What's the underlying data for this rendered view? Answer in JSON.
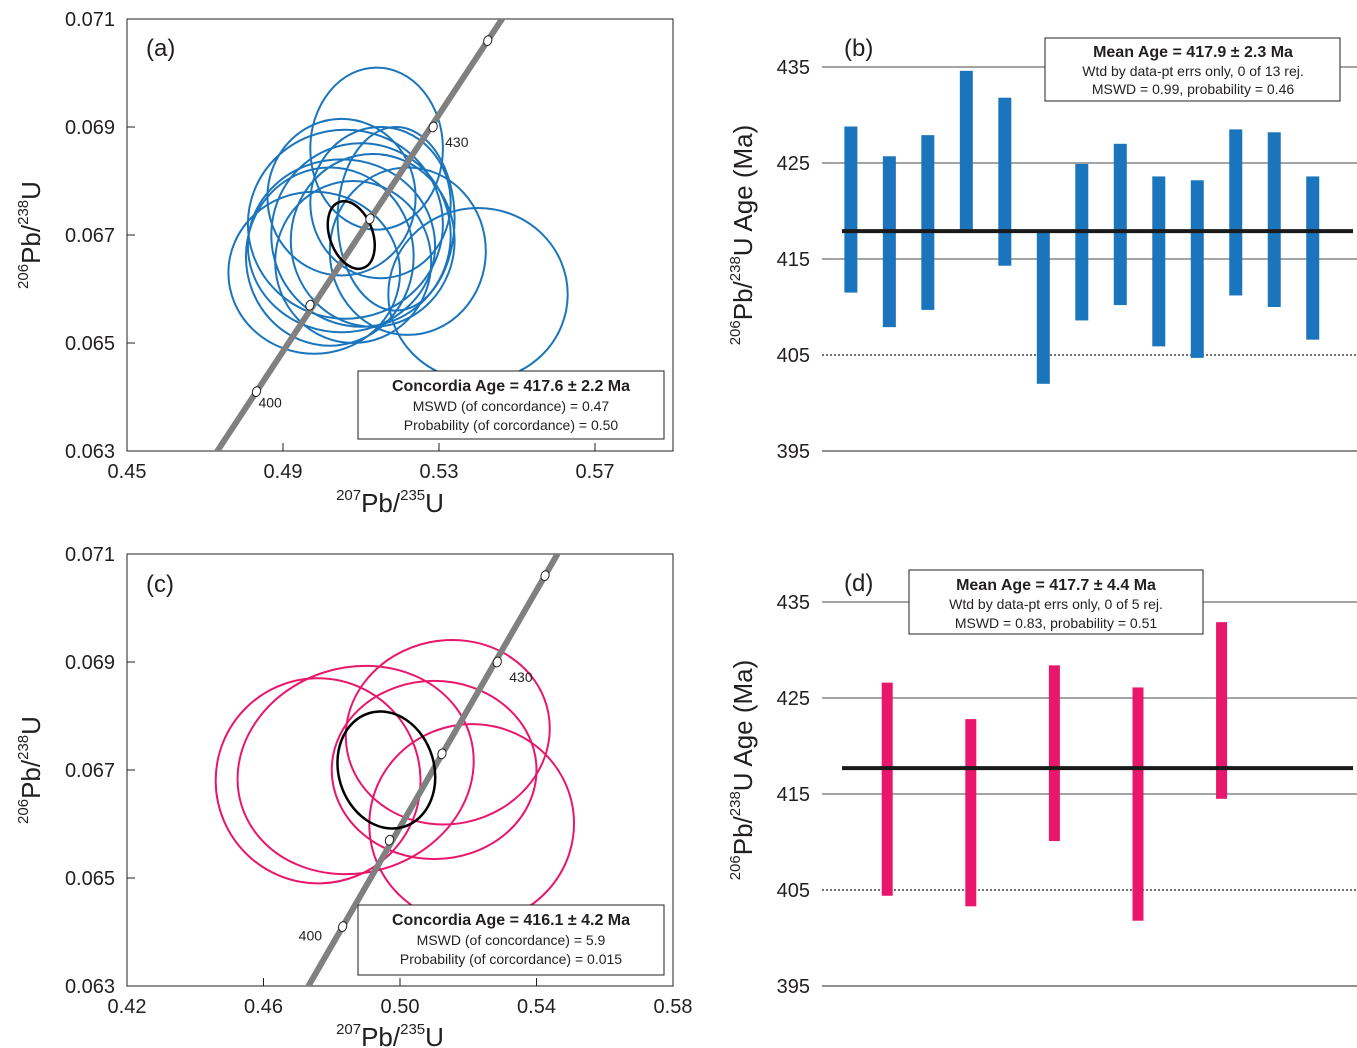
{
  "chart_data": [
    {
      "panel": "(a)",
      "type": "concordia",
      "xlabel": {
        "sup1": "207",
        "base1": "Pb/",
        "sup2": "235",
        "base2": "U"
      },
      "ylabel": {
        "sup1": "206",
        "base1": "Pb/",
        "sup2": "238",
        "base2": "U"
      },
      "xlim": [
        0.45,
        0.59
      ],
      "ylim": [
        0.063,
        0.071
      ],
      "xticks": [
        "0.45",
        "0.49",
        "0.53",
        "0.57"
      ],
      "yticks": [
        "0.063",
        "0.065",
        "0.067",
        "0.069",
        "0.071"
      ],
      "xtick_values": [
        0.45,
        0.49,
        0.53,
        0.57
      ],
      "ytick_values": [
        0.063,
        0.065,
        0.067,
        0.069,
        0.071
      ],
      "ellipse_color": "#1a75bc",
      "concordia_points": [
        {
          "x": 0.4832,
          "y": 0.0641,
          "age": "400"
        },
        {
          "x": 0.4969,
          "y": 0.0657,
          "age": ""
        },
        {
          "x": 0.5123,
          "y": 0.0673,
          "age": ""
        },
        {
          "x": 0.5285,
          "y": 0.069,
          "age": "430"
        },
        {
          "x": 0.5425,
          "y": 0.0706,
          "age": ""
        }
      ],
      "ellipses": [
        {
          "cx": 0.508,
          "cy": 0.0665,
          "rx": 0.02,
          "ry": 0.0015,
          "rot": 0
        },
        {
          "cx": 0.51,
          "cy": 0.067,
          "rx": 0.023,
          "ry": 0.0017,
          "rot": 0
        },
        {
          "cx": 0.505,
          "cy": 0.0668,
          "rx": 0.024,
          "ry": 0.0016,
          "rot": 0
        },
        {
          "cx": 0.498,
          "cy": 0.0663,
          "rx": 0.022,
          "ry": 0.0015,
          "rot": 0
        },
        {
          "cx": 0.506,
          "cy": 0.0672,
          "rx": 0.025,
          "ry": 0.00175,
          "rot": 0
        },
        {
          "cx": 0.502,
          "cy": 0.0666,
          "rx": 0.0215,
          "ry": 0.00165,
          "rot": 0
        },
        {
          "cx": 0.513,
          "cy": 0.0669,
          "rx": 0.021,
          "ry": 0.0016,
          "rot": 0
        },
        {
          "cx": 0.515,
          "cy": 0.0676,
          "rx": 0.018,
          "ry": 0.0014,
          "rot": 0
        },
        {
          "cx": 0.514,
          "cy": 0.0686,
          "rx": 0.017,
          "ry": 0.0015,
          "rot": 0
        },
        {
          "cx": 0.519,
          "cy": 0.0673,
          "rx": 0.015,
          "ry": 0.0017,
          "rot": 0
        },
        {
          "cx": 0.505,
          "cy": 0.0677,
          "rx": 0.019,
          "ry": 0.00145,
          "rot": 0
        },
        {
          "cx": 0.54,
          "cy": 0.0659,
          "rx": 0.023,
          "ry": 0.0016,
          "rot": 0
        },
        {
          "cx": 0.522,
          "cy": 0.0667,
          "rx": 0.02,
          "ry": 0.00155,
          "rot": 0
        }
      ],
      "mean_ellipse": {
        "cx": 0.5075,
        "cy": 0.067,
        "rx": 0.0055,
        "ry": 0.00065,
        "rot": -0.35
      },
      "box": {
        "title": "Concordia Age = 417.6 ± 2.2 Ma",
        "line1": "MSWD (of concordance) = 0.47",
        "line2": "Probability (of corcordance) = 0.50"
      }
    },
    {
      "panel": "(b)",
      "type": "weighted-mean",
      "ylabel": {
        "sup1": "206",
        "base1": "Pb/",
        "sup2": "238",
        "base2": "U Age (Ma)"
      },
      "ylim": [
        395,
        440
      ],
      "yticks": [
        "395",
        "405",
        "415",
        "425",
        "435"
      ],
      "ytick_values": [
        395,
        405,
        415,
        425,
        435
      ],
      "bar_color": "#1a75bc",
      "mean": 417.9,
      "bars": [
        {
          "low": 411.5,
          "high": 428.8
        },
        {
          "low": 407.9,
          "high": 425.7
        },
        {
          "low": 409.7,
          "high": 427.9
        },
        {
          "low": 417.9,
          "high": 434.6
        },
        {
          "low": 414.3,
          "high": 431.8
        },
        {
          "low": 402.0,
          "high": 418.0
        },
        {
          "low": 408.6,
          "high": 424.9
        },
        {
          "low": 410.2,
          "high": 427.0
        },
        {
          "low": 405.9,
          "high": 423.6
        },
        {
          "low": 404.7,
          "high": 423.2
        },
        {
          "low": 411.2,
          "high": 428.5
        },
        {
          "low": 410.0,
          "high": 428.2
        },
        {
          "low": 406.6,
          "high": 423.6
        }
      ],
      "box": {
        "title": "Mean Age = 417.9 ± 2.3 Ma",
        "line1": "Wtd by data-pt errs only, 0 of 13 rej.",
        "line2": "MSWD = 0.99, probability = 0.46"
      }
    },
    {
      "panel": "(c)",
      "type": "concordia",
      "xlabel": {
        "sup1": "207",
        "base1": "Pb/",
        "sup2": "235",
        "base2": "U"
      },
      "ylabel": {
        "sup1": "206",
        "base1": "Pb/",
        "sup2": "238",
        "base2": "U"
      },
      "xlim": [
        0.42,
        0.58
      ],
      "ylim": [
        0.063,
        0.071
      ],
      "xticks": [
        "0.42",
        "0.46",
        "0.50",
        "0.54",
        "0.58"
      ],
      "yticks": [
        "0.063",
        "0.065",
        "0.067",
        "0.069",
        "0.071"
      ],
      "xtick_values": [
        0.42,
        0.46,
        0.5,
        0.54,
        0.58
      ],
      "ytick_values": [
        0.063,
        0.065,
        0.067,
        0.069,
        0.071
      ],
      "ellipse_color": "#e8176c",
      "concordia_points": [
        {
          "x": 0.4832,
          "y": 0.0641,
          "age": "400"
        },
        {
          "x": 0.4969,
          "y": 0.0657,
          "age": ""
        },
        {
          "x": 0.5123,
          "y": 0.0673,
          "age": ""
        },
        {
          "x": 0.5285,
          "y": 0.069,
          "age": "430"
        },
        {
          "x": 0.5425,
          "y": 0.0706,
          "age": ""
        }
      ],
      "ellipses": [
        {
          "cx": 0.487,
          "cy": 0.067,
          "rx": 0.035,
          "ry": 0.0019,
          "rot": -0.3
        },
        {
          "cx": 0.476,
          "cy": 0.0668,
          "rx": 0.03,
          "ry": 0.0019,
          "rot": -0.4
        },
        {
          "cx": 0.51,
          "cy": 0.067,
          "rx": 0.03,
          "ry": 0.00165,
          "rot": 0
        },
        {
          "cx": 0.514,
          "cy": 0.0677,
          "rx": 0.03,
          "ry": 0.0017,
          "rot": -0.2
        },
        {
          "cx": 0.521,
          "cy": 0.066,
          "rx": 0.03,
          "ry": 0.00185,
          "rot": -0.1
        }
      ],
      "mean_ellipse": {
        "cx": 0.496,
        "cy": 0.067,
        "rx": 0.014,
        "ry": 0.0011,
        "rot": -0.3
      },
      "box": {
        "title": "Concordia Age = 416.1 ± 4.2 Ma",
        "line1": "MSWD (of concordance) = 5.9",
        "line2": "Probability (of corcordance) = 0.015"
      }
    },
    {
      "panel": "(d)",
      "type": "weighted-mean",
      "ylabel": {
        "sup1": "206",
        "base1": "Pb/",
        "sup2": "238",
        "base2": "U Age (Ma)"
      },
      "ylim": [
        395,
        440
      ],
      "yticks": [
        "395",
        "405",
        "415",
        "425",
        "435"
      ],
      "ytick_values": [
        395,
        405,
        415,
        425,
        435
      ],
      "bar_color": "#e8176c",
      "mean": 417.7,
      "bars": [
        {
          "low": 404.4,
          "high": 426.6
        },
        {
          "low": 403.3,
          "high": 422.8
        },
        {
          "low": 410.1,
          "high": 428.4
        },
        {
          "low": 401.8,
          "high": 426.1
        },
        {
          "low": 414.5,
          "high": 432.9
        }
      ],
      "box": {
        "title": "Mean Age = 417.7 ± 4.4 Ma",
        "line1": "Wtd by data-pt errs only, 0 of 5 rej.",
        "line2": "MSWD = 0.83, probability = 0.51"
      }
    }
  ]
}
